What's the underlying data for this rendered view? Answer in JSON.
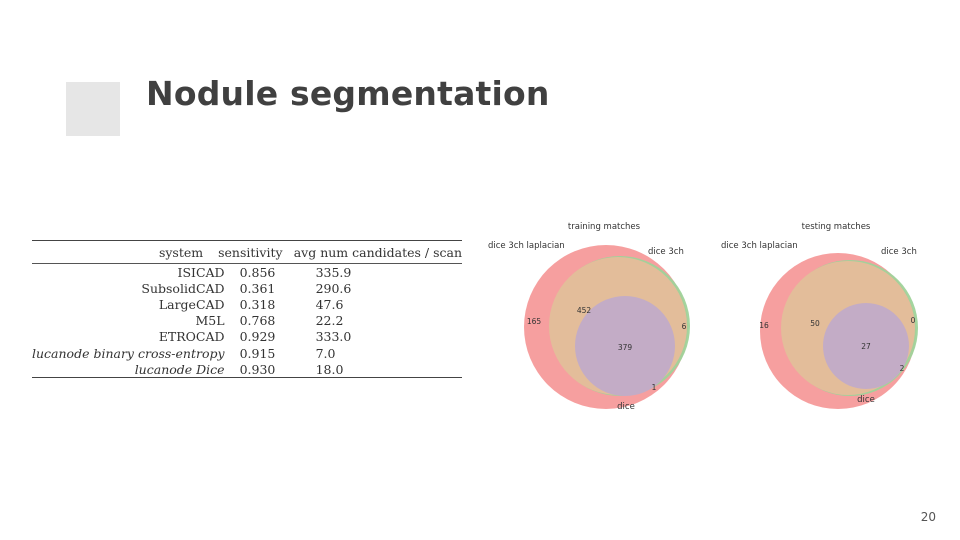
{
  "slide": {
    "title": "Nodule segmentation",
    "page_number": "20"
  },
  "table": {
    "headers": [
      "system",
      "sensitivity",
      "avg num candidates / scan"
    ],
    "rows": [
      {
        "system": "ISICAD",
        "sensitivity": "0.856",
        "candidates": "335.9",
        "italic": false
      },
      {
        "system": "SubsolidCAD",
        "sensitivity": "0.361",
        "candidates": "290.6",
        "italic": false
      },
      {
        "system": "LargeCAD",
        "sensitivity": "0.318",
        "candidates": "47.6",
        "italic": false
      },
      {
        "system": "M5L",
        "sensitivity": "0.768",
        "candidates": "22.2",
        "italic": false
      },
      {
        "system": "ETROCAD",
        "sensitivity": "0.929",
        "candidates": "333.0",
        "italic": false
      },
      {
        "system": "lucanode binary cross-entropy",
        "sensitivity": "0.915",
        "candidates": "7.0",
        "italic": true
      },
      {
        "system": "lucanode Dice",
        "sensitivity": "0.930",
        "candidates": "18.0",
        "italic": true
      }
    ]
  },
  "venn_training": {
    "title": "training matches",
    "label_a": "dice 3ch laplacian",
    "label_b": "dice 3ch",
    "label_c": "dice",
    "only_a": "165",
    "a_and_b": "452",
    "only_b": "6",
    "all_three": "379",
    "b_and_c": "1"
  },
  "venn_testing": {
    "title": "testing matches",
    "label_a": "dice 3ch laplacian",
    "label_b": "dice 3ch",
    "label_c": "dice",
    "only_a": "16",
    "a_and_b": "50",
    "only_b": "0",
    "all_three": "27",
    "b_and_c": "2"
  },
  "colors": {
    "title": "#404040",
    "deco_light": "#e6e6e6",
    "deco_dark": "#cfcfcf",
    "set_a": "#f59a9a",
    "set_b": "#9fd39a",
    "set_ab": "#e3bd9a",
    "set_c": "#c3acc6"
  }
}
